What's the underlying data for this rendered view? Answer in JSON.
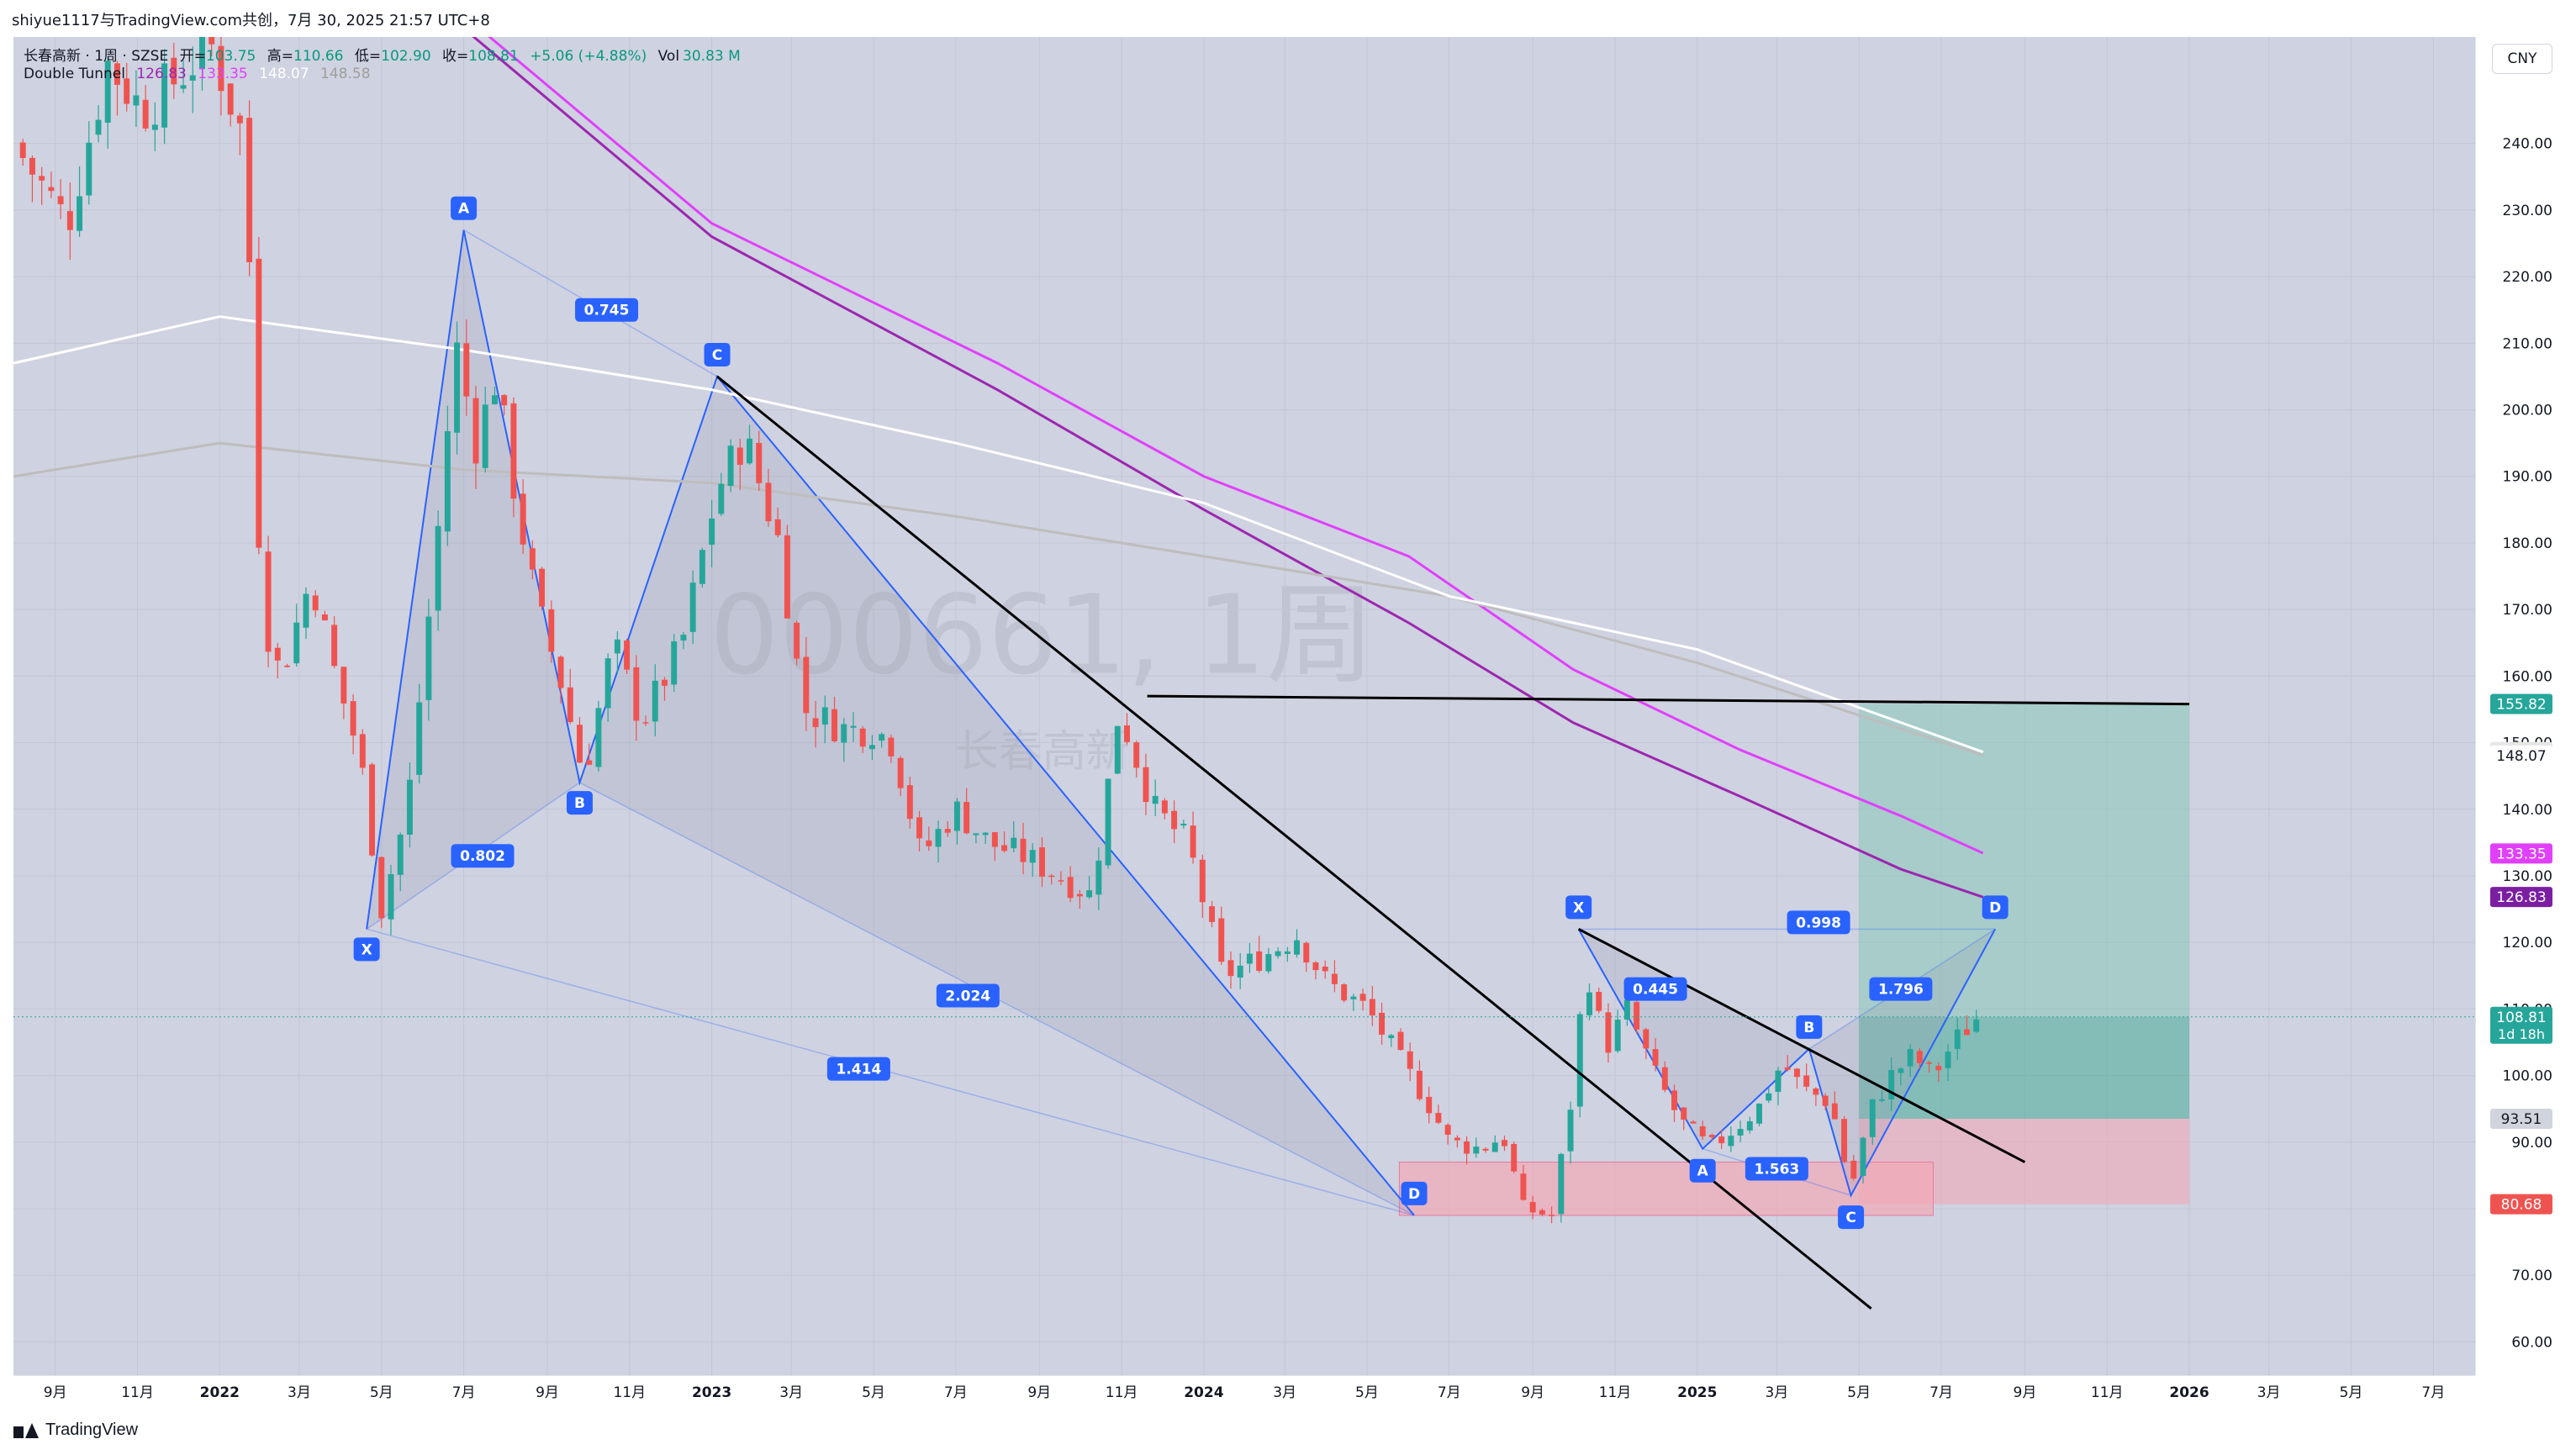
{
  "header": {
    "published_by": "shiyue1117与TradingView.com共创，7月 30, 2025 21:57 UTC+8"
  },
  "legend": {
    "symbol_line": "长春高新 · 1周 · SZSE",
    "open_label": "开=",
    "open": "103.75",
    "high_label": "高=",
    "high": "110.66",
    "low_label": "低=",
    "low": "102.90",
    "close_label": "收=",
    "close": "108.81",
    "change": "+5.06 (+4.88%)",
    "vol_label": "Vol",
    "vol": "30.83 M",
    "indicator_name": "Double Tunnel",
    "indicator_values": [
      "126.83",
      "133.35",
      "148.07",
      "148.58"
    ],
    "indicator_colors": [
      "#9c27b0",
      "#e040fb",
      "#bdbdbd",
      "#ffffff"
    ]
  },
  "currency_button": "CNY",
  "watermark": {
    "line1": "000661, 1周",
    "line2": "长春高新"
  },
  "footer": {
    "brand": "TradingView"
  },
  "colors": {
    "background": "#cfd2e0",
    "up": "#26a69a",
    "down": "#ef5350",
    "pattern_blue": "#2962ff",
    "trend_black": "#000000",
    "ma_purple": "#9c27b0",
    "ma_magenta": "#e040fb",
    "ma_white": "#ffffff",
    "ma_gray": "#a8a8a8",
    "target_zone": "#86c7b8",
    "stop_zone": "#f2a8b6"
  },
  "chart_data": {
    "type": "candlestick",
    "y_axis": {
      "range": [
        55,
        256
      ],
      "ticks": [
        "60.00",
        "70.00",
        "80.00",
        "90.00",
        "100.00",
        "110.00",
        "120.00",
        "130.00",
        "140.00",
        "150.00",
        "160.00",
        "170.00",
        "180.00",
        "190.00",
        "200.00",
        "210.00",
        "220.00",
        "230.00",
        "240.00"
      ]
    },
    "x_axis": {
      "range": [
        "2021-08-01",
        "2026-08-01"
      ],
      "ticks": [
        {
          "label": "9月",
          "date": "2021-09-01"
        },
        {
          "label": "11月",
          "date": "2021-11-01"
        },
        {
          "label": "2022",
          "date": "2022-01-01"
        },
        {
          "label": "3月",
          "date": "2022-03-01"
        },
        {
          "label": "5月",
          "date": "2022-05-01"
        },
        {
          "label": "7月",
          "date": "2022-07-01"
        },
        {
          "label": "9月",
          "date": "2022-09-01"
        },
        {
          "label": "11月",
          "date": "2022-11-01"
        },
        {
          "label": "2023",
          "date": "2023-01-01"
        },
        {
          "label": "3月",
          "date": "2023-03-01"
        },
        {
          "label": "5月",
          "date": "2023-05-01"
        },
        {
          "label": "7月",
          "date": "2023-07-01"
        },
        {
          "label": "9月",
          "date": "2023-09-01"
        },
        {
          "label": "11月",
          "date": "2023-11-01"
        },
        {
          "label": "2024",
          "date": "2024-01-01"
        },
        {
          "label": "3月",
          "date": "2024-03-01"
        },
        {
          "label": "5月",
          "date": "2024-05-01"
        },
        {
          "label": "7月",
          "date": "2024-07-01"
        },
        {
          "label": "9月",
          "date": "2024-09-01"
        },
        {
          "label": "11月",
          "date": "2024-11-01"
        },
        {
          "label": "2025",
          "date": "2025-01-01"
        },
        {
          "label": "3月",
          "date": "2025-03-01"
        },
        {
          "label": "5月",
          "date": "2025-05-01"
        },
        {
          "label": "7月",
          "date": "2025-07-01"
        },
        {
          "label": "9月",
          "date": "2025-09-01"
        },
        {
          "label": "11月",
          "date": "2025-11-01"
        },
        {
          "label": "2026",
          "date": "2026-01-01"
        },
        {
          "label": "3月",
          "date": "2026-03-01"
        },
        {
          "label": "5月",
          "date": "2026-05-01"
        },
        {
          "label": "7月",
          "date": "2026-07-01"
        }
      ]
    },
    "path_close": [
      [
        "2021-08-01",
        240
      ],
      [
        "2021-09-10",
        228
      ],
      [
        "2021-10-10",
        252
      ],
      [
        "2021-11-05",
        245
      ],
      [
        "2021-12-01",
        250
      ],
      [
        "2021-12-25",
        255
      ],
      [
        "2022-01-20",
        240
      ],
      [
        "2022-02-01",
        170
      ],
      [
        "2022-02-15",
        160
      ],
      [
        "2022-03-10",
        175
      ],
      [
        "2022-03-28",
        160
      ],
      [
        "2022-04-15",
        148
      ],
      [
        "2022-05-01",
        125
      ],
      [
        "2022-05-20",
        140
      ],
      [
        "2022-06-10",
        178
      ],
      [
        "2022-06-25",
        210
      ],
      [
        "2022-07-10",
        195
      ],
      [
        "2022-07-25",
        205
      ],
      [
        "2022-08-10",
        185
      ],
      [
        "2022-08-25",
        170
      ],
      [
        "2022-09-10",
        160
      ],
      [
        "2022-09-28",
        145
      ],
      [
        "2022-10-20",
        165
      ],
      [
        "2022-11-10",
        153
      ],
      [
        "2022-12-10",
        165
      ],
      [
        "2023-01-05",
        188
      ],
      [
        "2023-01-25",
        196
      ],
      [
        "2023-02-20",
        180
      ],
      [
        "2023-03-10",
        155
      ],
      [
        "2023-04-10",
        152
      ],
      [
        "2023-05-01",
        152
      ],
      [
        "2023-05-15",
        150
      ],
      [
        "2023-06-05",
        133
      ],
      [
        "2023-07-01",
        140
      ],
      [
        "2023-07-25",
        135
      ],
      [
        "2023-08-20",
        133
      ],
      [
        "2023-09-15",
        130
      ],
      [
        "2023-10-10",
        127
      ],
      [
        "2023-10-30",
        155
      ],
      [
        "2023-11-25",
        140
      ],
      [
        "2023-12-20",
        135
      ],
      [
        "2024-01-15",
        115
      ],
      [
        "2024-02-15",
        118
      ],
      [
        "2024-03-10",
        121
      ],
      [
        "2024-04-01",
        114
      ],
      [
        "2024-05-01",
        110
      ],
      [
        "2024-05-20",
        104
      ],
      [
        "2024-06-15",
        96
      ],
      [
        "2024-07-01",
        90
      ],
      [
        "2024-07-25",
        89
      ],
      [
        "2024-08-10",
        91
      ],
      [
        "2024-08-25",
        80
      ],
      [
        "2024-09-15",
        79
      ],
      [
        "2024-10-01",
        98
      ],
      [
        "2024-10-10",
        117
      ],
      [
        "2024-10-25",
        104
      ],
      [
        "2024-11-10",
        110
      ],
      [
        "2024-12-01",
        100
      ],
      [
        "2024-12-20",
        93
      ],
      [
        "2025-01-10",
        89
      ],
      [
        "2025-01-28",
        92
      ],
      [
        "2025-02-15",
        95
      ],
      [
        "2025-03-05",
        102
      ],
      [
        "2025-03-20",
        98
      ],
      [
        "2025-04-10",
        96
      ],
      [
        "2025-04-25",
        83
      ],
      [
        "2025-05-10",
        95
      ],
      [
        "2025-05-25",
        100
      ],
      [
        "2025-06-10",
        103
      ],
      [
        "2025-06-25",
        100
      ],
      [
        "2025-07-10",
        105
      ],
      [
        "2025-07-28",
        108.8
      ]
    ],
    "moving_averages": [
      {
        "name": "126.83",
        "color": "#9c27b0",
        "points": [
          [
            "2022-06-15",
            260
          ],
          [
            "2023-01-01",
            226
          ],
          [
            "2023-08-01",
            203
          ],
          [
            "2024-01-01",
            185
          ],
          [
            "2024-06-01",
            168
          ],
          [
            "2024-10-01",
            153
          ],
          [
            "2025-02-01",
            142
          ],
          [
            "2025-06-01",
            131
          ],
          [
            "2025-08-01",
            126.8
          ]
        ]
      },
      {
        "name": "133.35",
        "color": "#e040fb",
        "points": [
          [
            "2022-06-15",
            262
          ],
          [
            "2023-01-01",
            228
          ],
          [
            "2023-08-01",
            207
          ],
          [
            "2024-01-01",
            190
          ],
          [
            "2024-06-01",
            178
          ],
          [
            "2024-10-01",
            161
          ],
          [
            "2025-02-01",
            149
          ],
          [
            "2025-06-01",
            139
          ],
          [
            "2025-08-01",
            133.4
          ]
        ]
      },
      {
        "name": "148.07",
        "color": "#bdbdbd",
        "points": [
          [
            "2021-08-01",
            190
          ],
          [
            "2022-01-01",
            195
          ],
          [
            "2022-07-01",
            191
          ],
          [
            "2023-01-01",
            189
          ],
          [
            "2023-07-01",
            184
          ],
          [
            "2024-01-01",
            178
          ],
          [
            "2024-07-01",
            172
          ],
          [
            "2025-01-01",
            162
          ],
          [
            "2025-08-01",
            148.1
          ]
        ]
      },
      {
        "name": "148.58",
        "color": "#ffffff",
        "points": [
          [
            "2021-08-01",
            207
          ],
          [
            "2022-01-01",
            214
          ],
          [
            "2022-07-01",
            209
          ],
          [
            "2023-01-01",
            203
          ],
          [
            "2023-07-01",
            195
          ],
          [
            "2024-01-01",
            186
          ],
          [
            "2024-07-01",
            172
          ],
          [
            "2025-01-01",
            164
          ],
          [
            "2025-08-01",
            148.6
          ]
        ]
      }
    ],
    "harmonic_pattern_1": {
      "points": [
        {
          "label": "X",
          "date": "2022-04-20",
          "price": 122
        },
        {
          "label": "A",
          "date": "2022-07-01",
          "price": 227
        },
        {
          "label": "B",
          "date": "2022-09-25",
          "price": 144
        },
        {
          "label": "C",
          "date": "2023-01-05",
          "price": 205
        },
        {
          "label": "D",
          "date": "2024-06-05",
          "price": 79
        }
      ],
      "ratios": [
        {
          "label": "0.802",
          "date": "2022-07-15",
          "price": 133
        },
        {
          "label": "0.745",
          "date": "2022-10-15",
          "price": 215
        },
        {
          "label": "2.024",
          "date": "2023-07-10",
          "price": 112
        },
        {
          "label": "1.414",
          "date": "2023-04-20",
          "price": 101
        }
      ]
    },
    "harmonic_pattern_2": {
      "points": [
        {
          "label": "X",
          "date": "2024-10-05",
          "price": 122
        },
        {
          "label": "A",
          "date": "2025-01-05",
          "price": 89
        },
        {
          "label": "B",
          "date": "2025-03-25",
          "price": 104
        },
        {
          "label": "C",
          "date": "2025-04-25",
          "price": 82
        },
        {
          "label": "D",
          "date": "2025-08-10",
          "price": 122
        }
      ],
      "ratios": [
        {
          "label": "0.998",
          "date": "2025-04-01",
          "price": 123
        },
        {
          "label": "0.445",
          "date": "2024-12-01",
          "price": 113
        },
        {
          "label": "1.563",
          "date": "2025-03-01",
          "price": 86
        },
        {
          "label": "1.796",
          "date": "2025-06-01",
          "price": 113
        }
      ]
    },
    "trend_lines": [
      {
        "from": [
          "2023-01-05",
          205
        ],
        "to": [
          "2025-05-10",
          65
        ]
      },
      {
        "from": [
          "2024-10-05",
          122
        ],
        "to": [
          "2025-09-01",
          87
        ]
      },
      {
        "from": [
          "2023-11-20",
          157
        ],
        "to": [
          "2026-01-01",
          155.8
        ]
      }
    ],
    "support_zone": {
      "from": "2024-05-25",
      "to": "2025-06-25",
      "low": 79,
      "high": 87
    },
    "position": {
      "start": "2025-05-01",
      "end": "2026-01-01",
      "entry": 108.81,
      "target": 155.82,
      "stop": 80.68,
      "marker": 93.51
    },
    "price_labels": [
      {
        "value": "155.82",
        "price": 155.82,
        "bg": "#26a69a",
        "fg": "#ffffff"
      },
      {
        "value": "148.58",
        "price": 148.58,
        "bg": "#e6e6e6",
        "fg": "#131722"
      },
      {
        "value": "148.07",
        "price": 148.07,
        "bg": "#ffffff",
        "fg": "#131722"
      },
      {
        "value": "133.35",
        "price": 133.35,
        "bg": "#e040fb",
        "fg": "#ffffff"
      },
      {
        "value": "126.83",
        "price": 126.83,
        "bg": "#7b1fa2",
        "fg": "#ffffff"
      },
      {
        "value": "108.81",
        "sub": "1d 18h",
        "price": 108.81,
        "bg": "#26a69a",
        "fg": "#ffffff"
      },
      {
        "value": "93.51",
        "price": 93.51,
        "bg": "#d1d4dc",
        "fg": "#131722"
      },
      {
        "value": "80.68",
        "price": 80.68,
        "bg": "#ef5350",
        "fg": "#ffffff"
      }
    ]
  }
}
